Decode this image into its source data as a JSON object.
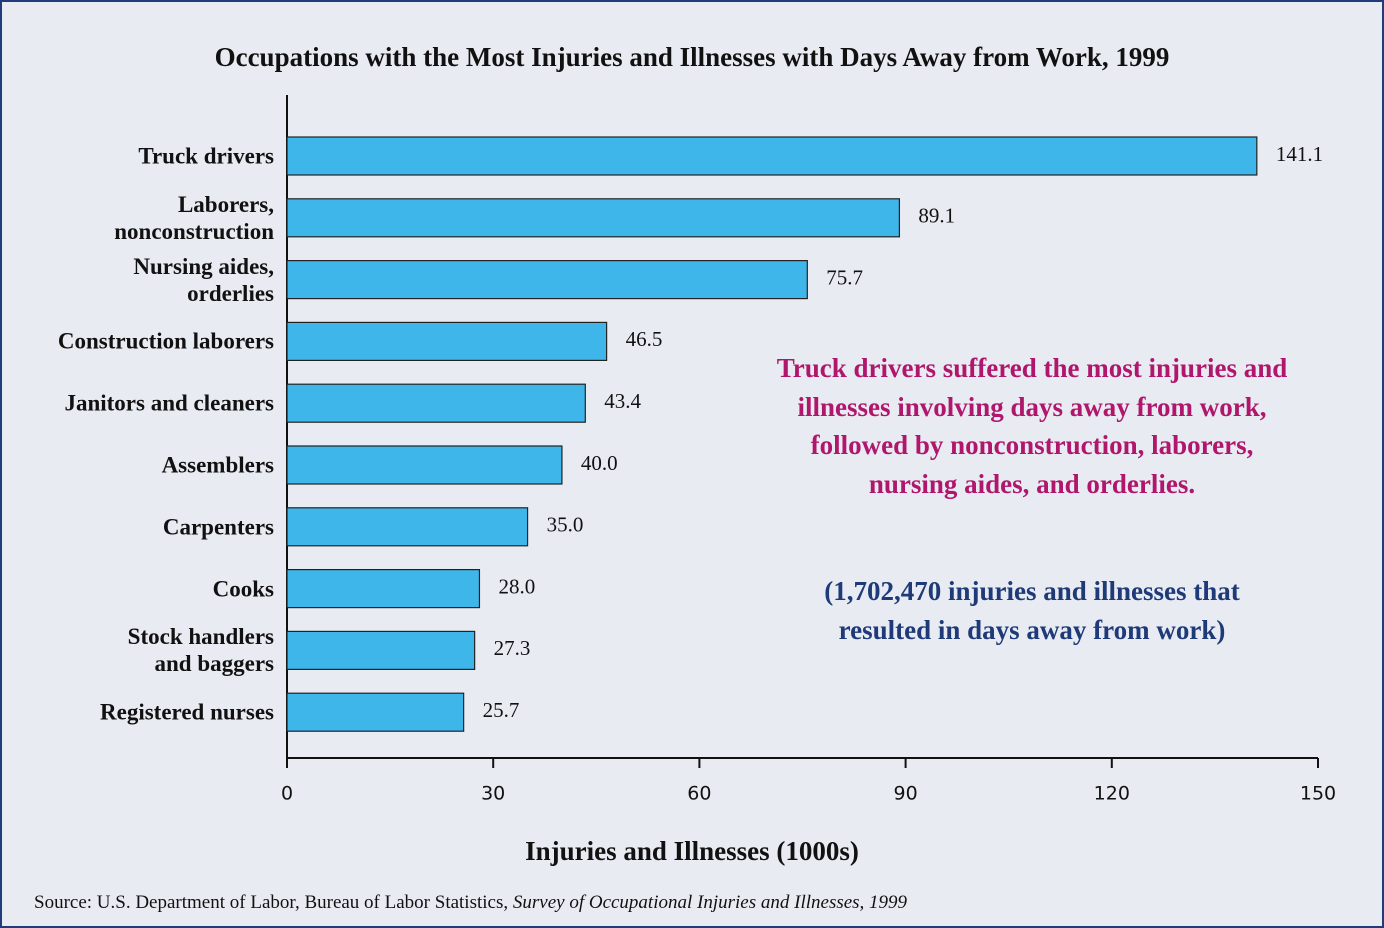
{
  "chart_data": {
    "type": "bar",
    "orientation": "horizontal",
    "title": "Occupations with the Most Injuries and Illnesses with Days Away from Work, 1999",
    "categories": [
      "Truck drivers",
      "Laborers,\nnonconstruction",
      "Nursing aides,\norderlies",
      "Construction laborers",
      "Janitors and cleaners",
      "Assemblers",
      "Carpenters",
      "Cooks",
      "Stock handlers\nand baggers",
      "Registered nurses"
    ],
    "values": [
      141.1,
      89.1,
      75.7,
      46.5,
      43.4,
      40.0,
      35.0,
      28.0,
      27.3,
      25.7
    ],
    "value_labels": [
      "141.1",
      "89.1",
      "75.7",
      "46.5",
      "43.4",
      "40.0",
      "35.0",
      "28.0",
      "27.3",
      "25.7"
    ],
    "color": "#3eb6ea",
    "xlim": [
      0,
      150
    ],
    "xticks": [
      0,
      30,
      60,
      90,
      120,
      150
    ],
    "x_label": "Injuries and Illnesses (1000s)",
    "annotations": [
      "Truck drivers suffered the most injuries and\nillnesses involving days away from work,\nfollowed by nonconstruction, laborers,\nnursing aides, and orderlies.",
      "(1,702,470 injuries and illnesses that\nresulted in days away from work)"
    ],
    "source": [
      "Source:  U.S. Department of Labor, Bureau of Labor Statistics, ",
      "Survey of Occupational Injuries and Illnesses, 1999"
    ]
  }
}
